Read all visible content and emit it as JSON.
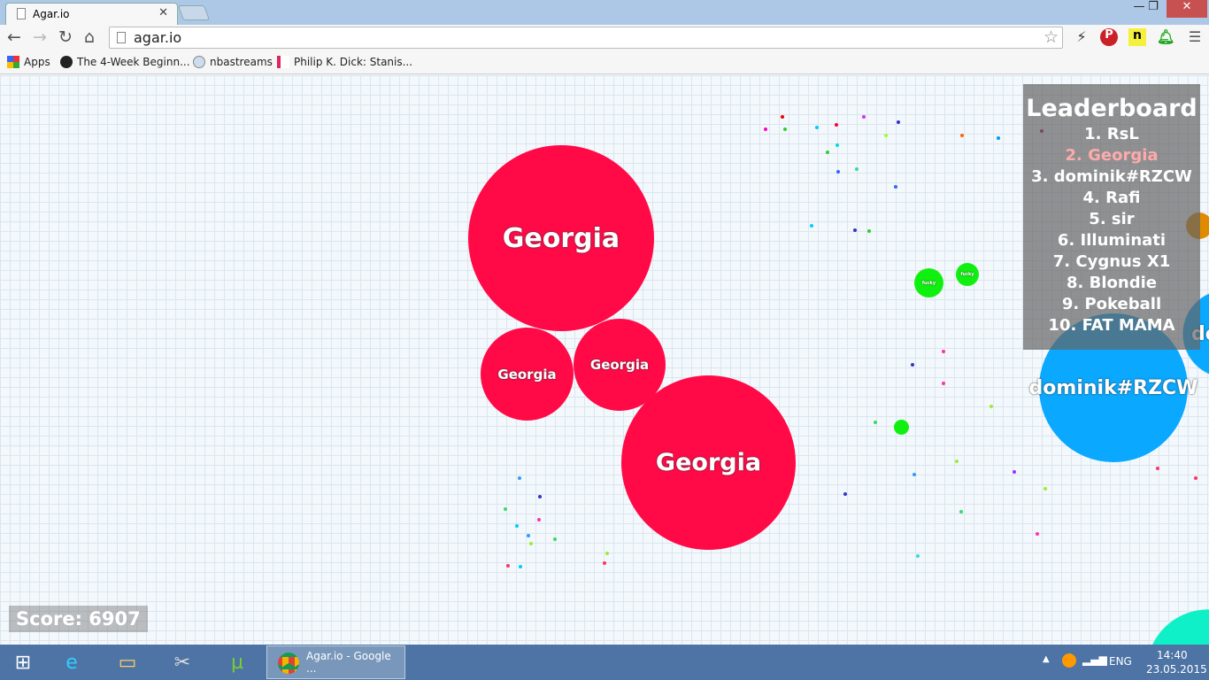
{
  "browser": {
    "tab_title": "Agar.io",
    "url": "agar.io",
    "bookmarks": [
      {
        "label": "Apps"
      },
      {
        "label": "The 4-Week Beginn..."
      },
      {
        "label": "nbastreams"
      },
      {
        "label": "Philip K. Dick: Stanis..."
      }
    ],
    "extension_labels": {
      "n": "n"
    }
  },
  "game": {
    "cells": [
      {
        "name": "Georgia",
        "color": "#ff0a47"
      },
      {
        "name": "Georgia",
        "color": "#ff0a47"
      },
      {
        "name": "Georgia",
        "color": "#ff0a47"
      },
      {
        "name": "Georgia",
        "color": "#ff0a47"
      },
      {
        "name": "dominik#RZCW",
        "color": "#0aa8ff"
      },
      {
        "name": "fucky",
        "color": "#10f010"
      },
      {
        "name": "fucky",
        "color": "#10f010"
      },
      {
        "name": "",
        "color": "#10f010"
      },
      {
        "name": "do",
        "color": "#0aa8ff"
      }
    ],
    "leaderboard": {
      "title": "Leaderboard",
      "entries": [
        "1. RsL",
        "2. Georgia",
        "3. dominik#RZCW",
        "4. Rafi",
        "5. sir",
        "6. Illuminati",
        "7. Cygnus X1",
        "8. Blondie",
        "9. Pokeball",
        "10. FAT MAMA"
      ],
      "highlight_index": 1
    },
    "score": "Score: 6907"
  },
  "taskbar": {
    "active_task": "Agar.io - Google ...",
    "language": "ENG",
    "time": "14:40",
    "date": "23.05.2015"
  }
}
